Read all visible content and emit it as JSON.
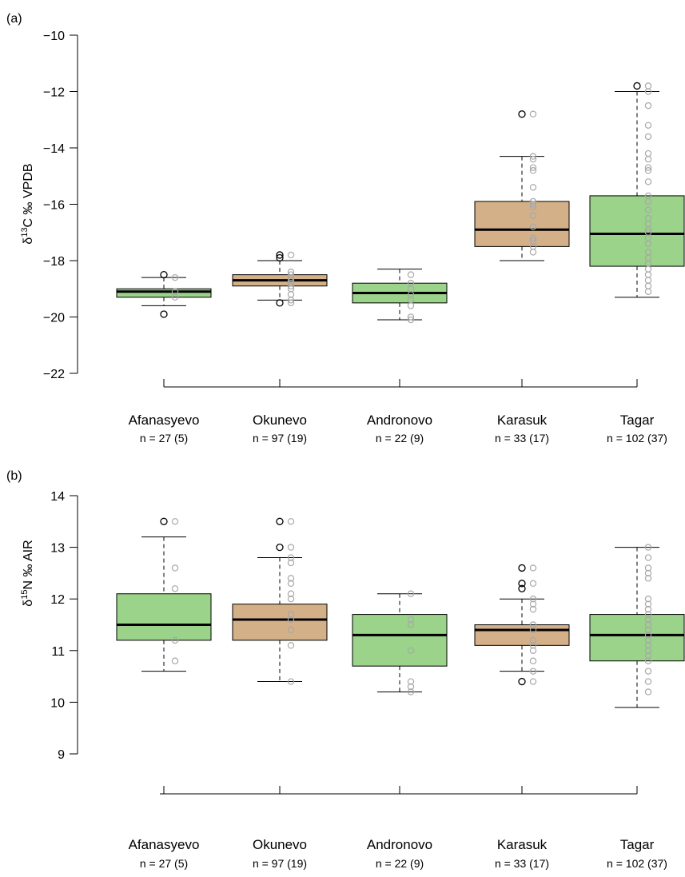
{
  "colors": {
    "green": "#9bd38a",
    "tan": "#d4b088",
    "points": "#a8a8a8",
    "outlier": "#000000"
  },
  "chart_data": [
    {
      "panel_label": "(a)",
      "type": "boxplot",
      "ylabel_prefix": "δ",
      "ylabel_sup": "13",
      "ylabel_rest": "C ‰ VPDB",
      "ylim": [
        -22,
        -10
      ],
      "yticks": [
        -10,
        -12,
        -14,
        -16,
        -18,
        -20,
        -22
      ],
      "grid": false,
      "categories": [
        "Afanasyevo",
        "Okunevo",
        "Andronovo",
        "Karasuk",
        "Tagar"
      ],
      "n_labels": [
        "n = 27 (5)",
        "n = 97 (19)",
        "n = 22 (9)",
        "n = 33 (17)",
        "n = 102 (37)"
      ],
      "boxes": [
        {
          "color": "green",
          "whisker_low": -19.6,
          "q1": -19.3,
          "median": -19.1,
          "q3": -19.0,
          "whisker_high": -18.6,
          "outliers": [
            -18.5,
            -19.9
          ],
          "points": [
            -18.6,
            -19.1,
            -19.3
          ]
        },
        {
          "color": "tan",
          "whisker_low": -19.4,
          "q1": -18.9,
          "median": -18.7,
          "q3": -18.5,
          "whisker_high": -18.0,
          "outliers": [
            -17.8,
            -17.9,
            -19.5
          ],
          "points": [
            -17.8,
            -18.4,
            -18.5,
            -18.6,
            -18.7,
            -18.8,
            -18.9,
            -19.0,
            -19.2,
            -19.4,
            -19.5
          ]
        },
        {
          "color": "green",
          "whisker_low": -20.1,
          "q1": -19.5,
          "median": -19.15,
          "q3": -18.8,
          "whisker_high": -18.3,
          "outliers": [],
          "points": [
            -18.5,
            -18.8,
            -19.0,
            -19.2,
            -19.4,
            -19.6,
            -20.0,
            -20.1
          ]
        },
        {
          "color": "tan",
          "whisker_low": -18.0,
          "q1": -17.5,
          "median": -16.9,
          "q3": -15.9,
          "whisker_high": -14.3,
          "outliers": [
            -12.8
          ],
          "points": [
            -12.8,
            -14.3,
            -14.4,
            -14.7,
            -14.8,
            -15.4,
            -15.9,
            -16.0,
            -16.1,
            -16.4,
            -16.8,
            -17.2,
            -17.3,
            -17.5,
            -17.7
          ]
        },
        {
          "color": "green",
          "whisker_low": -19.3,
          "q1": -18.2,
          "median": -17.05,
          "q3": -15.7,
          "whisker_high": -12.0,
          "outliers": [
            -11.8
          ],
          "points": [
            -11.8,
            -12.0,
            -12.5,
            -13.2,
            -13.6,
            -14.2,
            -14.4,
            -14.7,
            -14.8,
            -15.2,
            -15.7,
            -15.9,
            -16.2,
            -16.5,
            -16.7,
            -16.9,
            -17.0,
            -17.2,
            -17.4,
            -17.7,
            -17.9,
            -18.1,
            -18.3,
            -18.5,
            -18.7,
            -18.9,
            -19.1
          ]
        }
      ]
    },
    {
      "panel_label": "(b)",
      "type": "boxplot",
      "ylabel_prefix": "δ",
      "ylabel_sup": "15",
      "ylabel_rest": "N ‰ AIR",
      "ylim": [
        9,
        14
      ],
      "yticks": [
        14,
        13,
        12,
        11,
        10,
        9
      ],
      "grid": false,
      "categories": [
        "Afanasyevo",
        "Okunevo",
        "Andronovo",
        "Karasuk",
        "Tagar"
      ],
      "n_labels": [
        "n = 27 (5)",
        "n = 97 (19)",
        "n = 22 (9)",
        "n = 33 (17)",
        "n = 102 (37)"
      ],
      "boxes": [
        {
          "color": "green",
          "whisker_low": 10.6,
          "q1": 11.2,
          "median": 11.5,
          "q3": 12.1,
          "whisker_high": 13.2,
          "outliers": [
            13.5
          ],
          "points": [
            13.5,
            12.6,
            12.2,
            11.2,
            10.8
          ]
        },
        {
          "color": "tan",
          "whisker_low": 10.4,
          "q1": 11.2,
          "median": 11.6,
          "q3": 11.9,
          "whisker_high": 12.8,
          "outliers": [
            13.5,
            13.0
          ],
          "points": [
            13.5,
            13.0,
            12.8,
            12.7,
            12.4,
            12.3,
            12.1,
            12.0,
            11.7,
            11.6,
            11.4,
            11.1,
            10.4
          ]
        },
        {
          "color": "green",
          "whisker_low": 10.2,
          "q1": 10.7,
          "median": 11.3,
          "q3": 11.7,
          "whisker_high": 12.1,
          "outliers": [],
          "points": [
            12.1,
            11.6,
            11.5,
            11.0,
            10.4,
            10.3,
            10.2
          ]
        },
        {
          "color": "tan",
          "whisker_low": 10.6,
          "q1": 11.1,
          "median": 11.4,
          "q3": 11.5,
          "whisker_high": 12.0,
          "outliers": [
            12.6,
            12.3,
            12.2,
            10.4
          ],
          "points": [
            12.6,
            12.3,
            12.0,
            11.9,
            11.8,
            11.5,
            11.4,
            11.2,
            11.1,
            11.0,
            10.8,
            10.6,
            10.4
          ]
        },
        {
          "color": "green",
          "whisker_low": 9.9,
          "q1": 10.8,
          "median": 11.3,
          "q3": 11.7,
          "whisker_high": 13.0,
          "outliers": [],
          "points": [
            13.0,
            12.8,
            12.6,
            12.5,
            12.4,
            12.0,
            11.9,
            11.8,
            11.7,
            11.6,
            11.5,
            11.4,
            11.3,
            11.2,
            11.1,
            11.0,
            10.9,
            10.8,
            10.6,
            10.4,
            10.2
          ]
        }
      ]
    }
  ]
}
